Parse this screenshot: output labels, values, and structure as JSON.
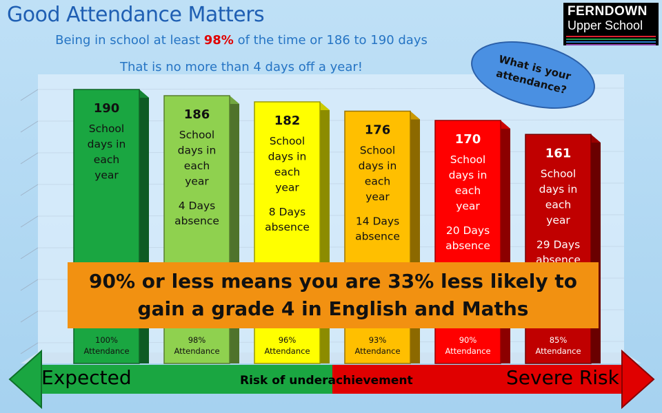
{
  "header": {
    "title": "Good Attendance Matters",
    "sub1_pre": "Being in school at least ",
    "sub1_pct": "98%",
    "sub1_post": " of the time or 186 to 190 days",
    "sub2": "That is no more than 4 days off a year!"
  },
  "logo": {
    "line1": "FERNDOWN",
    "line2": "Upper School"
  },
  "bubble": {
    "text": "What is your attendance?"
  },
  "banner": {
    "line1": "90% or less means you are 33% less likely to",
    "line2": "gain a grade 4 in English and Maths"
  },
  "arrow": {
    "left_label": "Expected",
    "middle_label": "Risk of underachievement",
    "right_label": "Severe Risk"
  },
  "colors": {
    "green": "#1aa641",
    "light_green": "#8fd14f",
    "yellow": "#ffff00",
    "amber": "#ffbf00",
    "red": "#ff0000",
    "dark_red": "#c00000",
    "banner": "#f29111",
    "title": "#1f5fb3"
  },
  "chart_data": {
    "type": "bar",
    "title": "",
    "xlabel": "",
    "ylabel": "",
    "ylim": [
      0,
      190
    ],
    "categories": [
      "100% Attendance",
      "98% Attendance",
      "96% Attendance",
      "93% Attendance",
      "90% Attendance",
      "85% Attendance"
    ],
    "values": [
      190,
      186,
      182,
      176,
      170,
      161
    ],
    "days_label": "School days in each year",
    "absence_labels": [
      "",
      "4 Days absence",
      "8 Days absence",
      "14 Days absence",
      "20 Days absence",
      "29 Days absence"
    ],
    "bar_colors": [
      "#1aa641",
      "#8fd14f",
      "#ffff00",
      "#ffbf00",
      "#ff0000",
      "#c00000"
    ]
  }
}
